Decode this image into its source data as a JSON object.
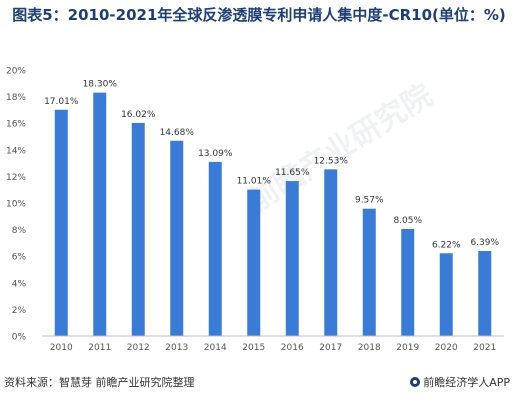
{
  "title": "图表5：2010-2021年全球反渗透膜专利申请人集中度-CR10(单位：%)",
  "chart_data": {
    "type": "bar",
    "categories": [
      "2010",
      "2011",
      "2012",
      "2013",
      "2014",
      "2015",
      "2016",
      "2017",
      "2018",
      "2019",
      "2020",
      "2021"
    ],
    "values": [
      17.01,
      18.3,
      16.02,
      14.68,
      13.09,
      11.01,
      11.65,
      12.53,
      9.57,
      8.05,
      6.22,
      6.39
    ],
    "data_labels": [
      "17.01%",
      "18.30%",
      "16.02%",
      "14.68%",
      "13.09%",
      "11.01%",
      "11.65%",
      "12.53%",
      "9.57%",
      "8.05%",
      "6.22%",
      "6.39%"
    ],
    "y_ticks": [
      0,
      2,
      4,
      6,
      8,
      10,
      12,
      14,
      16,
      18,
      20
    ],
    "y_tick_labels": [
      "0%",
      "2%",
      "4%",
      "6%",
      "8%",
      "10%",
      "12%",
      "14%",
      "16%",
      "18%",
      "20%"
    ],
    "ylim": [
      0,
      20
    ],
    "grid": false,
    "bar_color": "#3a7bd5"
  },
  "footer": {
    "source": "资料来源：智慧芽 前瞻产业研究院整理",
    "brand": "前瞻经济学人APP"
  },
  "watermark": "前瞻产业研究院"
}
